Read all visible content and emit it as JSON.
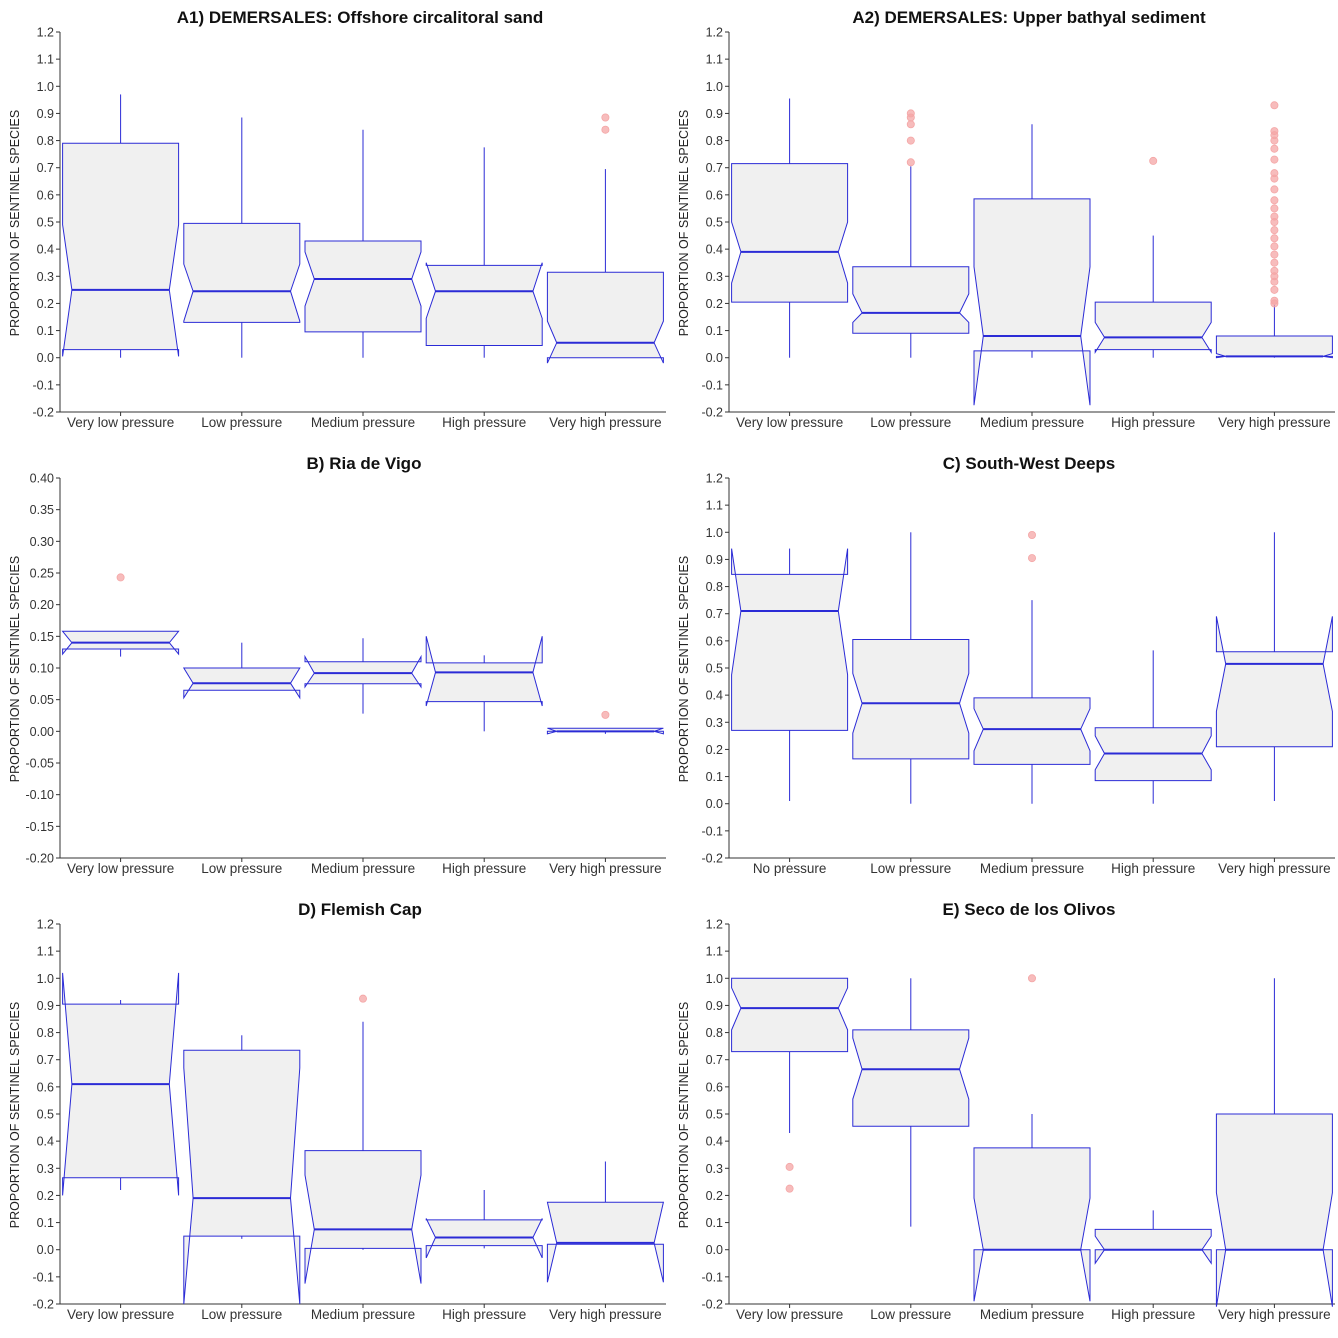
{
  "colors": {
    "box_fill": "#f0f0f0",
    "box_stroke": "#2b2bd6",
    "outlier": "#f4a6a6",
    "axis": "#333333"
  },
  "chart_data": [
    {
      "type": "box",
      "title": "A1) DEMERSALES: Offshore circalitoral sand",
      "ylabel": "PROPORTION OF SENTINEL SPECIES",
      "xlabel": "",
      "ylim": [
        -0.2,
        1.2
      ],
      "yticks": [
        "1.2",
        "1.1",
        "1.0",
        "0.9",
        "0.8",
        "0.7",
        "0.6",
        "0.5",
        "0.4",
        "0.3",
        "0.2",
        "0.1",
        "0.0",
        "-0.1",
        "-0.2"
      ],
      "yticks_values": [
        1.2,
        1.1,
        1.0,
        0.9,
        0.8,
        0.7,
        0.6,
        0.5,
        0.4,
        0.3,
        0.2,
        0.1,
        0.0,
        -0.1,
        -0.2
      ],
      "categories": [
        "Very low pressure",
        "Low pressure",
        "Medium pressure",
        "High pressure",
        "Very high pressure"
      ],
      "boxes": [
        {
          "q1": 0.03,
          "median": 0.25,
          "q3": 0.79,
          "lo": 0.0,
          "hi": 0.97,
          "nlo": 0.005,
          "nhi": 0.49,
          "outliers": []
        },
        {
          "q1": 0.13,
          "median": 0.245,
          "q3": 0.495,
          "lo": 0.0,
          "hi": 0.885,
          "nlo": 0.135,
          "nhi": 0.345,
          "outliers": []
        },
        {
          "q1": 0.095,
          "median": 0.29,
          "q3": 0.43,
          "lo": 0.0,
          "hi": 0.84,
          "nlo": 0.19,
          "nhi": 0.39,
          "outliers": []
        },
        {
          "q1": 0.045,
          "median": 0.245,
          "q3": 0.34,
          "lo": 0.0,
          "hi": 0.775,
          "nlo": 0.145,
          "nhi": 0.35,
          "outliers": []
        },
        {
          "q1": 0.0,
          "median": 0.055,
          "q3": 0.315,
          "lo": 0.0,
          "hi": 0.695,
          "nlo": -0.02,
          "nhi": 0.135,
          "outliers": [
            0.84,
            0.885
          ]
        }
      ]
    },
    {
      "type": "box",
      "title": "A2) DEMERSALES: Upper bathyal sediment",
      "ylabel": "PROPORTION OF SENTINEL SPECIES",
      "xlabel": "",
      "ylim": [
        -0.2,
        1.2
      ],
      "yticks": [
        "1.2",
        "1.1",
        "1.0",
        "0.9",
        "0.8",
        "0.7",
        "0.6",
        "0.5",
        "0.4",
        "0.3",
        "0.2",
        "0.1",
        "0.0",
        "-0.1",
        "-0.2"
      ],
      "yticks_values": [
        1.2,
        1.1,
        1.0,
        0.9,
        0.8,
        0.7,
        0.6,
        0.5,
        0.4,
        0.3,
        0.2,
        0.1,
        0.0,
        -0.1,
        -0.2
      ],
      "categories": [
        "Very low pressure",
        "Low pressure",
        "Medium pressure",
        "High pressure",
        "Very high pressure"
      ],
      "boxes": [
        {
          "q1": 0.205,
          "median": 0.39,
          "q3": 0.715,
          "lo": 0.0,
          "hi": 0.955,
          "nlo": 0.275,
          "nhi": 0.5,
          "outliers": []
        },
        {
          "q1": 0.09,
          "median": 0.165,
          "q3": 0.335,
          "lo": 0.0,
          "hi": 0.705,
          "nlo": 0.13,
          "nhi": 0.235,
          "outliers": [
            0.72,
            0.8,
            0.86,
            0.885,
            0.9
          ]
        },
        {
          "q1": 0.025,
          "median": 0.08,
          "q3": 0.585,
          "lo": 0.0,
          "hi": 0.86,
          "nlo": -0.175,
          "nhi": 0.335,
          "outliers": []
        },
        {
          "q1": 0.03,
          "median": 0.075,
          "q3": 0.205,
          "lo": 0.0,
          "hi": 0.45,
          "nlo": 0.02,
          "nhi": 0.13,
          "outliers": [
            0.725
          ]
        },
        {
          "q1": 0.005,
          "median": 0.005,
          "q3": 0.08,
          "lo": 0.0,
          "hi": 0.195,
          "nlo": 0.0,
          "nhi": 0.015,
          "outliers": [
            0.2,
            0.21,
            0.25,
            0.28,
            0.3,
            0.32,
            0.35,
            0.38,
            0.41,
            0.44,
            0.47,
            0.5,
            0.52,
            0.55,
            0.58,
            0.62,
            0.66,
            0.68,
            0.73,
            0.77,
            0.8,
            0.82,
            0.835,
            0.93
          ]
        }
      ]
    },
    {
      "type": "box",
      "title": "B) Ria de Vigo",
      "ylabel": "PROPORTION OF SENTINEL SPECIES",
      "xlabel": "",
      "ylim": [
        -0.2,
        0.4
      ],
      "yticks": [
        "0.40",
        "0.35",
        "0.30",
        "0.25",
        "0.20",
        "0.15",
        "0.10",
        "0.05",
        "0.00",
        "-0.05",
        "-0.10",
        "-0.15",
        "-0.20"
      ],
      "yticks_values": [
        0.4,
        0.35,
        0.3,
        0.25,
        0.2,
        0.15,
        0.1,
        0.05,
        0.0,
        -0.05,
        -0.1,
        -0.15,
        -0.2
      ],
      "categories": [
        "Very low pressure",
        "Low pressure",
        "Medium pressure",
        "High pressure",
        "Very high pressure"
      ],
      "boxes": [
        {
          "q1": 0.13,
          "median": 0.14,
          "q3": 0.158,
          "lo": 0.118,
          "hi": 0.158,
          "nlo": 0.122,
          "nhi": 0.158,
          "outliers": [
            0.243
          ]
        },
        {
          "q1": 0.065,
          "median": 0.076,
          "q3": 0.1,
          "lo": 0.065,
          "hi": 0.14,
          "nlo": 0.053,
          "nhi": 0.1,
          "outliers": []
        },
        {
          "q1": 0.075,
          "median": 0.092,
          "q3": 0.11,
          "lo": 0.028,
          "hi": 0.147,
          "nlo": 0.07,
          "nhi": 0.118,
          "outliers": []
        },
        {
          "q1": 0.047,
          "median": 0.093,
          "q3": 0.108,
          "lo": 0.0,
          "hi": 0.12,
          "nlo": 0.04,
          "nhi": 0.15,
          "outliers": []
        },
        {
          "q1": 0.0,
          "median": 0.0,
          "q3": 0.005,
          "lo": -0.004,
          "hi": 0.005,
          "nlo": -0.004,
          "nhi": 0.005,
          "outliers": [
            0.026
          ]
        }
      ]
    },
    {
      "type": "box",
      "title": "C) South-West Deeps",
      "ylabel": "PROPORTION OF SENTINEL SPECIES",
      "xlabel": "",
      "ylim": [
        -0.2,
        1.2
      ],
      "yticks": [
        "1.2",
        "1.1",
        "1.0",
        "0.9",
        "0.8",
        "0.7",
        "0.6",
        "0.5",
        "0.4",
        "0.3",
        "0.2",
        "0.1",
        "0.0",
        "-0.1",
        "-0.2"
      ],
      "yticks_values": [
        1.2,
        1.1,
        1.0,
        0.9,
        0.8,
        0.7,
        0.6,
        0.5,
        0.4,
        0.3,
        0.2,
        0.1,
        0.0,
        -0.1,
        -0.2
      ],
      "categories": [
        "No pressure",
        "Low pressure",
        "Medium pressure",
        "High pressure",
        "Very high pressure"
      ],
      "boxes": [
        {
          "q1": 0.27,
          "median": 0.71,
          "q3": 0.845,
          "lo": 0.01,
          "hi": 0.94,
          "nlo": 0.475,
          "nhi": 0.94,
          "outliers": []
        },
        {
          "q1": 0.165,
          "median": 0.37,
          "q3": 0.605,
          "lo": 0.0,
          "hi": 1.0,
          "nlo": 0.26,
          "nhi": 0.48,
          "outliers": []
        },
        {
          "q1": 0.145,
          "median": 0.275,
          "q3": 0.39,
          "lo": 0.0,
          "hi": 0.75,
          "nlo": 0.195,
          "nhi": 0.35,
          "outliers": [
            0.905,
            0.99
          ]
        },
        {
          "q1": 0.085,
          "median": 0.185,
          "q3": 0.28,
          "lo": 0.0,
          "hi": 0.565,
          "nlo": 0.125,
          "nhi": 0.25,
          "outliers": []
        },
        {
          "q1": 0.21,
          "median": 0.515,
          "q3": 0.56,
          "lo": 0.01,
          "hi": 1.0,
          "nlo": 0.34,
          "nhi": 0.69,
          "outliers": []
        }
      ]
    },
    {
      "type": "box",
      "title": "D) Flemish Cap",
      "ylabel": "PROPORTION OF SENTINEL SPECIES",
      "xlabel": "",
      "ylim": [
        -0.2,
        1.2
      ],
      "yticks": [
        "1.2",
        "1.1",
        "1.0",
        "0.9",
        "0.8",
        "0.7",
        "0.6",
        "0.5",
        "0.4",
        "0.3",
        "0.2",
        "0.1",
        "0.0",
        "-0.1",
        "-0.2"
      ],
      "yticks_values": [
        1.2,
        1.1,
        1.0,
        0.9,
        0.8,
        0.7,
        0.6,
        0.5,
        0.4,
        0.3,
        0.2,
        0.1,
        0.0,
        -0.1,
        -0.2
      ],
      "categories": [
        "Very low pressure",
        "Low pressure",
        "Medium pressure",
        "High pressure",
        "Very high pressure"
      ],
      "boxes": [
        {
          "q1": 0.265,
          "median": 0.61,
          "q3": 0.905,
          "lo": 0.22,
          "hi": 0.92,
          "nlo": 0.2,
          "nhi": 1.02,
          "outliers": []
        },
        {
          "q1": 0.05,
          "median": 0.19,
          "q3": 0.735,
          "lo": 0.04,
          "hi": 0.79,
          "nlo": -0.2,
          "nhi": 0.67,
          "outliers": []
        },
        {
          "q1": 0.005,
          "median": 0.075,
          "q3": 0.365,
          "lo": 0.0,
          "hi": 0.84,
          "nlo": -0.125,
          "nhi": 0.275,
          "outliers": [
            0.925
          ]
        },
        {
          "q1": 0.015,
          "median": 0.045,
          "q3": 0.11,
          "lo": 0.005,
          "hi": 0.22,
          "nlo": -0.03,
          "nhi": 0.115,
          "outliers": []
        },
        {
          "q1": 0.02,
          "median": 0.025,
          "q3": 0.175,
          "lo": 0.02,
          "hi": 0.325,
          "nlo": -0.12,
          "nhi": 0.175,
          "outliers": []
        }
      ]
    },
    {
      "type": "box",
      "title": "E) Seco de los Olivos",
      "ylabel": "PROPORTION OF SENTINEL SPECIES",
      "xlabel": "",
      "ylim": [
        -0.2,
        1.2
      ],
      "yticks": [
        "1.2",
        "1.1",
        "1.0",
        "0.9",
        "0.8",
        "0.7",
        "0.6",
        "0.5",
        "0.4",
        "0.3",
        "0.2",
        "0.1",
        "0.0",
        "-0.1",
        "-0.2"
      ],
      "yticks_values": [
        1.2,
        1.1,
        1.0,
        0.9,
        0.8,
        0.7,
        0.6,
        0.5,
        0.4,
        0.3,
        0.2,
        0.1,
        0.0,
        -0.1,
        -0.2
      ],
      "categories": [
        "Very low pressure",
        "Low pressure",
        "Medium pressure",
        "High pressure",
        "Very high pressure"
      ],
      "boxes": [
        {
          "q1": 0.73,
          "median": 0.89,
          "q3": 1.0,
          "lo": 0.43,
          "hi": 1.0,
          "nlo": 0.81,
          "nhi": 0.965,
          "outliers": [
            0.225,
            0.305
          ]
        },
        {
          "q1": 0.455,
          "median": 0.665,
          "q3": 0.81,
          "lo": 0.085,
          "hi": 1.0,
          "nlo": 0.555,
          "nhi": 0.78,
          "outliers": []
        },
        {
          "q1": 0.0,
          "median": 0.0,
          "q3": 0.375,
          "lo": 0.0,
          "hi": 0.5,
          "nlo": -0.19,
          "nhi": 0.19,
          "outliers": [
            1.0
          ]
        },
        {
          "q1": 0.0,
          "median": 0.0,
          "q3": 0.075,
          "lo": 0.0,
          "hi": 0.145,
          "nlo": -0.05,
          "nhi": 0.05,
          "outliers": []
        },
        {
          "q1": 0.0,
          "median": 0.0,
          "q3": 0.5,
          "lo": 0.0,
          "hi": 1.0,
          "nlo": -0.21,
          "nhi": 0.21,
          "outliers": []
        }
      ]
    }
  ]
}
